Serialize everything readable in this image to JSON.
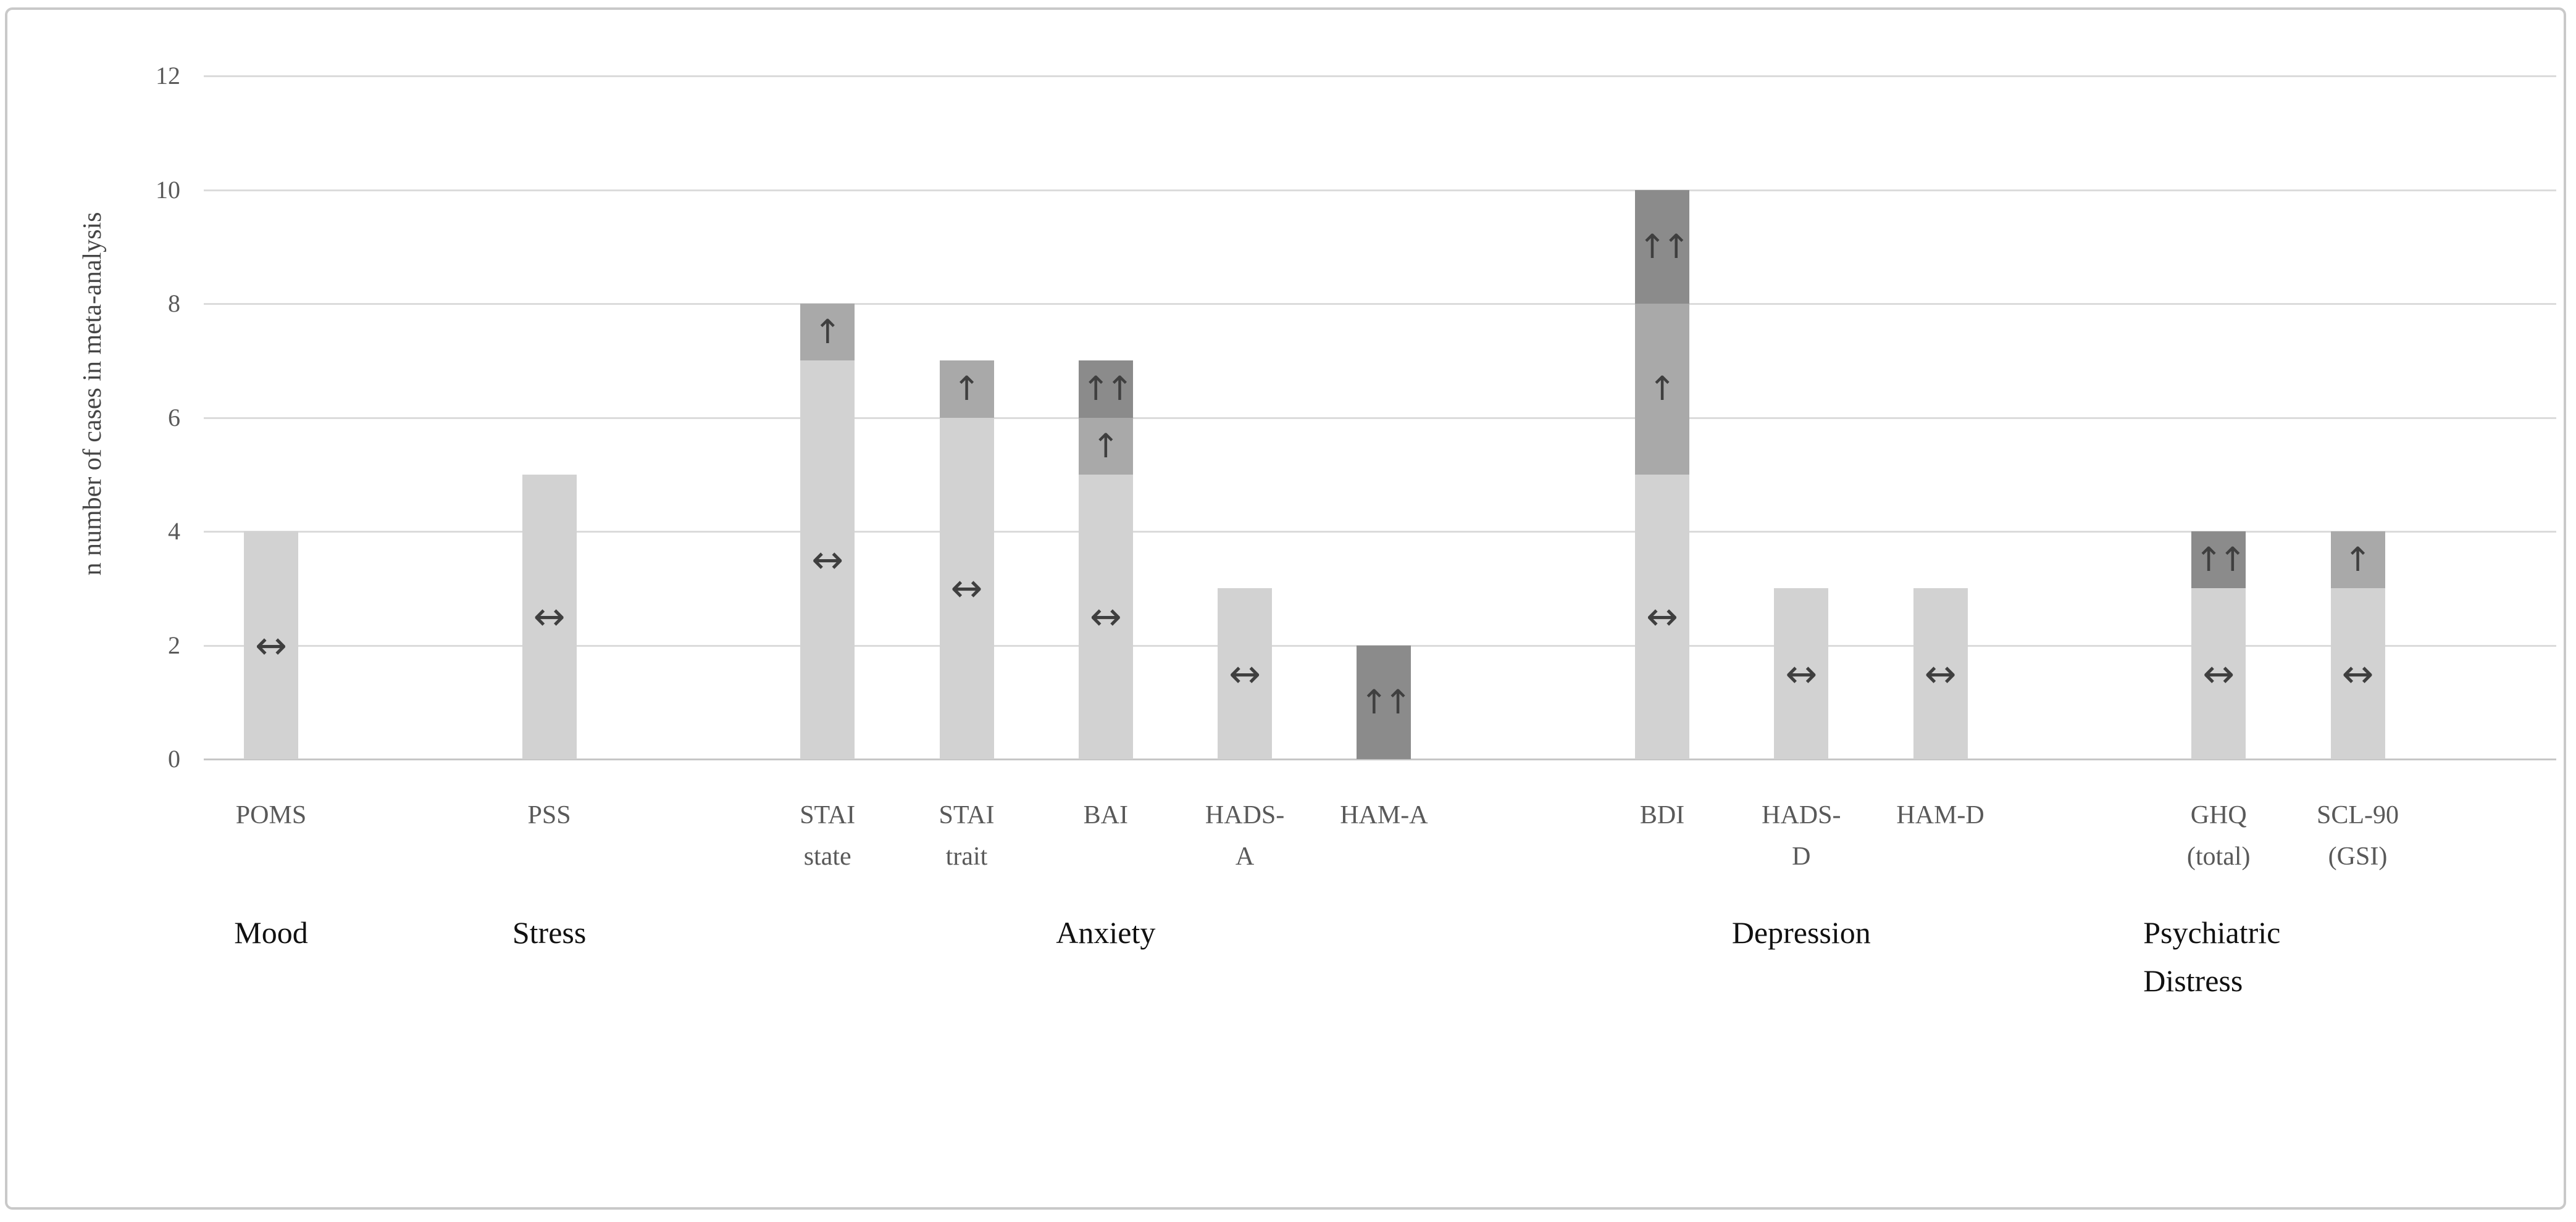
{
  "figure": {
    "ylabel": "n number of cases in meta-analysis"
  },
  "chart_data": {
    "type": "bar",
    "stacked": true,
    "title": "",
    "xlabel": "",
    "ylabel": "n number of cases in meta-analysis",
    "ylim": [
      0,
      12
    ],
    "yticks": [
      0,
      2,
      4,
      6,
      8,
      10,
      12
    ],
    "grid": true,
    "legend": "none",
    "effect_colors": {
      "no_change": "#d2d2d2",
      "increase": "#a9a9a9",
      "strong_increase": "#8b8b8b"
    },
    "effect_symbols": {
      "no_change": "↔",
      "increase": "↑",
      "strong_increase": "↑↑"
    },
    "bars": [
      {
        "label_lines": [
          "POMS"
        ],
        "slot": 0,
        "category": "Mood",
        "total": 4,
        "segments": [
          {
            "from": 0,
            "to": 4,
            "effect": "no_change"
          }
        ]
      },
      {
        "label_lines": [
          "PSS"
        ],
        "slot": 2,
        "category": "Stress",
        "total": 5,
        "segments": [
          {
            "from": 0,
            "to": 5,
            "effect": "no_change"
          }
        ]
      },
      {
        "label_lines": [
          "STAI",
          "state"
        ],
        "slot": 4,
        "category": "Anxiety",
        "total": 8,
        "segments": [
          {
            "from": 0,
            "to": 7,
            "effect": "no_change"
          },
          {
            "from": 7,
            "to": 8,
            "effect": "increase"
          }
        ]
      },
      {
        "label_lines": [
          "STAI",
          "trait"
        ],
        "slot": 5,
        "category": "Anxiety",
        "total": 7,
        "segments": [
          {
            "from": 0,
            "to": 6,
            "effect": "no_change"
          },
          {
            "from": 6,
            "to": 7,
            "effect": "increase"
          }
        ]
      },
      {
        "label_lines": [
          "BAI"
        ],
        "slot": 6,
        "category": "Anxiety",
        "total": 7,
        "segments": [
          {
            "from": 0,
            "to": 5,
            "effect": "no_change"
          },
          {
            "from": 5,
            "to": 6,
            "effect": "increase"
          },
          {
            "from": 6,
            "to": 7,
            "effect": "strong_increase"
          }
        ]
      },
      {
        "label_lines": [
          "HADS-",
          "A"
        ],
        "slot": 7,
        "category": "Anxiety",
        "total": 3,
        "segments": [
          {
            "from": 0,
            "to": 3,
            "effect": "no_change"
          }
        ]
      },
      {
        "label_lines": [
          "HAM-A"
        ],
        "slot": 8,
        "category": "Anxiety",
        "total": 2,
        "segments": [
          {
            "from": 0,
            "to": 2,
            "effect": "strong_increase"
          }
        ]
      },
      {
        "label_lines": [
          "BDI"
        ],
        "slot": 10,
        "category": "Depression",
        "total": 10,
        "segments": [
          {
            "from": 0,
            "to": 5,
            "effect": "no_change"
          },
          {
            "from": 5,
            "to": 8,
            "effect": "increase"
          },
          {
            "from": 8,
            "to": 10,
            "effect": "strong_increase"
          }
        ]
      },
      {
        "label_lines": [
          "HADS-",
          "D"
        ],
        "slot": 11,
        "category": "Depression",
        "total": 3,
        "segments": [
          {
            "from": 0,
            "to": 3,
            "effect": "no_change"
          }
        ]
      },
      {
        "label_lines": [
          "HAM-D"
        ],
        "slot": 12,
        "category": "Depression",
        "total": 3,
        "segments": [
          {
            "from": 0,
            "to": 3,
            "effect": "no_change"
          }
        ]
      },
      {
        "label_lines": [
          "GHQ",
          "(total)"
        ],
        "slot": 14,
        "category": "Psychiatric Distress",
        "total": 4,
        "segments": [
          {
            "from": 0,
            "to": 3,
            "effect": "no_change"
          },
          {
            "from": 3,
            "to": 4,
            "effect": "strong_increase"
          }
        ]
      },
      {
        "label_lines": [
          "SCL-90",
          "(GSI)"
        ],
        "slot": 15,
        "category": "Psychiatric Distress",
        "total": 4,
        "segments": [
          {
            "from": 0,
            "to": 3,
            "effect": "no_change"
          },
          {
            "from": 3,
            "to": 4,
            "effect": "increase"
          }
        ]
      }
    ],
    "category_labels": [
      {
        "label_lines": [
          "Mood"
        ],
        "slot": 0,
        "align": "center"
      },
      {
        "label_lines": [
          "Stress"
        ],
        "slot": 2,
        "align": "center"
      },
      {
        "label_lines": [
          "Anxiety"
        ],
        "slot": 6,
        "align": "center"
      },
      {
        "label_lines": [
          "Depression"
        ],
        "slot": 11,
        "align": "center"
      },
      {
        "label_lines": [
          "Psychiatric",
          "Distress"
        ],
        "slot": 14,
        "align": "left"
      }
    ]
  }
}
